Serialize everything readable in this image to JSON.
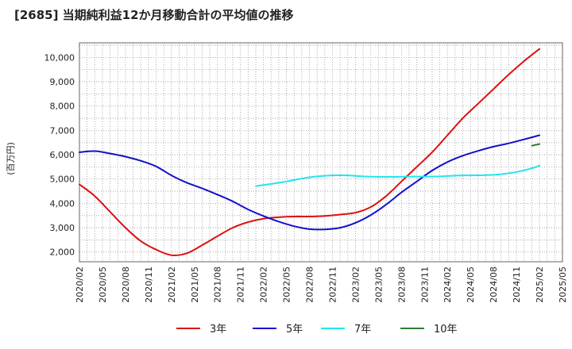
{
  "chart_data": {
    "type": "line",
    "title": "[2685]  当期純利益12か月移動合計の平均値の推移",
    "ylabel": "(百万円)",
    "xlabel": "",
    "ylim": [
      1600,
      10600
    ],
    "yticks": [
      2000,
      3000,
      4000,
      5000,
      6000,
      7000,
      8000,
      9000,
      10000
    ],
    "ytick_labels": [
      "2,000",
      "3,000",
      "4,000",
      "5,000",
      "6,000",
      "7,000",
      "8,000",
      "9,000",
      "10,000"
    ],
    "xticks": [
      "2020/02",
      "2020/05",
      "2020/08",
      "2020/11",
      "2021/02",
      "2021/05",
      "2021/08",
      "2021/11",
      "2022/02",
      "2022/05",
      "2022/08",
      "2022/11",
      "2023/02",
      "2023/05",
      "2023/08",
      "2023/11",
      "2024/02",
      "2024/05",
      "2024/08",
      "2024/11",
      "2025/02",
      "2025/05"
    ],
    "grid": true,
    "legend_position": "bottom",
    "series": [
      {
        "name": "3年",
        "color": "#dd1111",
        "points": [
          [
            "2020/02",
            4780
          ],
          [
            "2020/04",
            4300
          ],
          [
            "2020/06",
            3650
          ],
          [
            "2020/08",
            3000
          ],
          [
            "2020/10",
            2450
          ],
          [
            "2020/12",
            2100
          ],
          [
            "2021/02",
            1870
          ],
          [
            "2021/04",
            1950
          ],
          [
            "2021/06",
            2280
          ],
          [
            "2021/08",
            2650
          ],
          [
            "2021/10",
            3000
          ],
          [
            "2021/12",
            3230
          ],
          [
            "2022/02",
            3370
          ],
          [
            "2022/04",
            3430
          ],
          [
            "2022/06",
            3460
          ],
          [
            "2022/08",
            3460
          ],
          [
            "2022/10",
            3480
          ],
          [
            "2022/12",
            3540
          ],
          [
            "2023/02",
            3620
          ],
          [
            "2023/04",
            3850
          ],
          [
            "2023/06",
            4300
          ],
          [
            "2023/08",
            4900
          ],
          [
            "2023/10",
            5500
          ],
          [
            "2023/12",
            6100
          ],
          [
            "2024/02",
            6800
          ],
          [
            "2024/04",
            7500
          ],
          [
            "2024/06",
            8100
          ],
          [
            "2024/08",
            8700
          ],
          [
            "2024/10",
            9300
          ],
          [
            "2024/12",
            9850
          ],
          [
            "2025/02",
            10350
          ]
        ]
      },
      {
        "name": "5年",
        "color": "#1111cc",
        "points": [
          [
            "2020/02",
            6100
          ],
          [
            "2020/04",
            6150
          ],
          [
            "2020/06",
            6050
          ],
          [
            "2020/08",
            5920
          ],
          [
            "2020/10",
            5750
          ],
          [
            "2020/12",
            5520
          ],
          [
            "2021/02",
            5150
          ],
          [
            "2021/04",
            4850
          ],
          [
            "2021/06",
            4620
          ],
          [
            "2021/08",
            4360
          ],
          [
            "2021/10",
            4080
          ],
          [
            "2021/12",
            3750
          ],
          [
            "2022/02",
            3480
          ],
          [
            "2022/04",
            3250
          ],
          [
            "2022/06",
            3060
          ],
          [
            "2022/08",
            2940
          ],
          [
            "2022/10",
            2930
          ],
          [
            "2022/12",
            3000
          ],
          [
            "2023/02",
            3200
          ],
          [
            "2023/04",
            3520
          ],
          [
            "2023/06",
            3950
          ],
          [
            "2023/08",
            4450
          ],
          [
            "2023/10",
            4900
          ],
          [
            "2023/12",
            5350
          ],
          [
            "2024/02",
            5700
          ],
          [
            "2024/04",
            5960
          ],
          [
            "2024/06",
            6160
          ],
          [
            "2024/08",
            6330
          ],
          [
            "2024/10",
            6470
          ],
          [
            "2024/12",
            6630
          ],
          [
            "2025/02",
            6800
          ]
        ]
      },
      {
        "name": "7年",
        "color": "#22e5ee",
        "points": [
          [
            "2022/01",
            4710
          ],
          [
            "2022/03",
            4800
          ],
          [
            "2022/05",
            4900
          ],
          [
            "2022/07",
            5020
          ],
          [
            "2022/09",
            5110
          ],
          [
            "2022/11",
            5150
          ],
          [
            "2023/01",
            5150
          ],
          [
            "2023/03",
            5110
          ],
          [
            "2023/05",
            5090
          ],
          [
            "2023/07",
            5090
          ],
          [
            "2023/09",
            5100
          ],
          [
            "2023/11",
            5100
          ],
          [
            "2024/01",
            5110
          ],
          [
            "2024/03",
            5140
          ],
          [
            "2024/05",
            5150
          ],
          [
            "2024/07",
            5160
          ],
          [
            "2024/09",
            5200
          ],
          [
            "2024/11",
            5290
          ],
          [
            "2025/01",
            5440
          ],
          [
            "2025/02",
            5550
          ]
        ]
      },
      {
        "name": "10年",
        "color": "#2e7d32",
        "points": [
          [
            "2025/01",
            6370
          ],
          [
            "2025/02",
            6440
          ]
        ]
      }
    ]
  }
}
